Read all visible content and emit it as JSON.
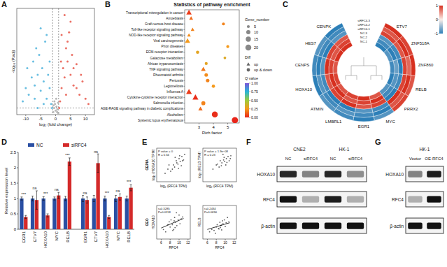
{
  "chart_data": [
    {
      "type": "scatter",
      "panel": "A",
      "x_label": "log₂ (fold change)",
      "y_label": "-log₁₀ (P.adj)",
      "series": [
        {
          "color": "#4db3dc",
          "x": [
            -11,
            -10,
            -9.5,
            -9,
            -8,
            -7.5,
            -7,
            -6.5,
            -6,
            -5.5,
            -5,
            -4.5,
            -4,
            -3.5,
            -3,
            -2.5,
            -2,
            -1.5,
            -1.2,
            -3,
            -5,
            -7,
            -2,
            -4,
            -6
          ],
          "values": [
            10,
            20,
            35,
            15,
            28,
            40,
            22,
            50,
            30,
            45,
            18,
            35,
            25,
            55,
            12,
            30,
            20,
            8,
            5,
            60,
            65,
            12,
            40,
            8,
            5
          ]
        },
        {
          "color": "#e8574a",
          "x": [
            1.2,
            1.5,
            2,
            2.5,
            3,
            3.5,
            4,
            4.5,
            5,
            5.5,
            6,
            7,
            8,
            9,
            10,
            11,
            2,
            3,
            4,
            5,
            6,
            7,
            3.5,
            1.8,
            8.5
          ],
          "values": [
            5,
            10,
            20,
            35,
            28,
            50,
            40,
            62,
            30,
            45,
            22,
            38,
            15,
            25,
            12,
            8,
            60,
            75,
            55,
            70,
            35,
            20,
            15,
            40,
            30
          ]
        },
        {
          "color": "#aaaaaa",
          "x": [
            -0.8,
            -0.5,
            -0.2,
            0,
            0.3,
            0.6,
            0.9,
            -0.4,
            0.2,
            0.5,
            -0.7,
            0.8
          ],
          "values": [
            2,
            5,
            8,
            3,
            6,
            4,
            1,
            10,
            12,
            2,
            7,
            9
          ]
        }
      ],
      "xlim": [
        -13,
        13
      ],
      "ylim": [
        0,
        80
      ],
      "xticks": [
        -10,
        -5,
        0,
        5,
        10
      ],
      "tick_labels": "x",
      "vlines": [
        -1,
        1
      ],
      "hline": 5
    },
    {
      "type": "bubble",
      "panel": "B",
      "title": "Statistics of pathway enrichment",
      "x_label": "Rich factor",
      "categories": [
        "Transcriptional misregulation in cancer",
        "Amoebiasis",
        "Graft-versus-host disease",
        "Toll-like receptor signaling pathway",
        "NOD-like receptor signaling pathway",
        "Viral carcinogenesis",
        "Prion diseases",
        "ECM-receptor interaction",
        "Galactose metabolism",
        "African trypanosomiasis",
        "TNF signaling pathway",
        "Rheumatoid arthritis",
        "Pertussis",
        "Legionellosis",
        "Influenza A",
        "Cytokine-cytokine receptor interaction",
        "Salmonella infection",
        "AGE-RAGE signaling pathway in diabetic complications",
        "Alcoholism",
        "Systemic lupus erythematosus"
      ],
      "values": [
        2.3,
        2.45,
        4.7,
        2.55,
        2.3,
        2.2,
        5.0,
        2.9,
        4.8,
        3.5,
        3.3,
        3.5,
        3.6,
        4.0,
        2.3,
        2.75,
        3.3,
        3.1,
        4.1,
        5.5
      ],
      "gene_number": [
        15,
        8,
        5,
        7,
        7,
        14,
        5,
        6,
        4,
        5,
        11,
        7,
        7,
        6,
        17,
        18,
        9,
        10,
        20,
        22
      ],
      "q_value": [
        0.05,
        0.15,
        0.2,
        0.2,
        0.22,
        0.25,
        0.25,
        0.3,
        0.32,
        0.3,
        0.18,
        0.22,
        0.2,
        0.25,
        0.05,
        0.02,
        0.2,
        0.15,
        0.02,
        0
      ],
      "diff": [
        "up",
        "up",
        "up & down",
        "up",
        "up",
        "up",
        "up & down",
        "up & down",
        "up & down",
        "up & down",
        "up",
        "up & down",
        "up & down",
        "up & down",
        "up",
        "up",
        "up & down",
        "up",
        "up & down",
        "up & down"
      ],
      "xlim": [
        2,
        5.8
      ],
      "xticks": [
        3,
        4,
        5
      ],
      "size_legend": {
        "title": "Gene_number",
        "values": [
          5,
          10,
          15,
          20
        ]
      },
      "diff_legend": {
        "title": "Diff",
        "items": [
          "up",
          "up & down"
        ]
      },
      "color_bar": {
        "title": "Q value",
        "range": [
          0,
          1
        ],
        "ticks": [
          {
            "value": 0,
            "label": "0.00"
          },
          {
            "value": 0.25,
            "label": "0.25"
          },
          {
            "value": 0.5,
            "label": "0.50"
          },
          {
            "value": 0.75,
            "label": "0.75"
          },
          {
            "value": 1,
            "label": "1.00"
          }
        ]
      }
    },
    {
      "type": "circular_heatmap",
      "panel": "C",
      "columns": [
        "ETV7",
        "ZNF518A",
        "ZNF860",
        "RELB",
        "PRRX2",
        "MYC",
        "EGR1",
        "LMBRL1",
        "ATMIN",
        "HOXA10",
        "CENPS",
        "HES7",
        "CENPK"
      ],
      "rows": [
        "siRFC4-3",
        "siRFC4-2",
        "siRFC4-1",
        "NC-3",
        "NC-2",
        "NC-1"
      ],
      "cells": [
        [
          1,
          0.9,
          1,
          0.8,
          0.9,
          -0.8,
          -1,
          -0.9,
          -0.8,
          -1,
          -0.9,
          -0.8,
          -1
        ],
        [
          0.8,
          1,
          0.7,
          1,
          0.8,
          -1,
          -0.9,
          -0.8,
          -0.9,
          -0.8,
          -1,
          -0.9,
          -0.9
        ],
        [
          0.9,
          0.8,
          0.9,
          0.9,
          1,
          -0.9,
          -0.8,
          -1,
          -1,
          -0.9,
          -0.8,
          -1,
          -0.8
        ],
        [
          -0.8,
          -0.9,
          -1,
          -0.9,
          -1,
          0.9,
          0.8,
          1,
          0.9,
          0.8,
          1,
          0.9,
          0.8
        ],
        [
          -0.9,
          -1,
          -0.7,
          -0.8,
          -0.9,
          1,
          0.9,
          0.8,
          1,
          1,
          0.9,
          0.8,
          0.9
        ],
        [
          -1,
          -0.8,
          -0.9,
          -1,
          -0.8,
          0.8,
          1,
          0.9,
          0.8,
          0.9,
          0.8,
          1,
          1
        ]
      ],
      "color_bar": {
        "range": [
          -1,
          1
        ],
        "ticks": [
          1,
          0,
          -1
        ]
      }
    },
    {
      "type": "bar",
      "panel": "D",
      "y_label": "Relative expression level",
      "categories": [
        "EGR1",
        "ETV7",
        "HOXA10",
        "MYC",
        "RELB",
        "EGR1",
        "ETV7",
        "HOXA10",
        "MYC",
        "RELB"
      ],
      "series": [
        {
          "name": "NC",
          "color": "#2a4fa3",
          "values": [
            1,
            1,
            1,
            1,
            1,
            1,
            1,
            1,
            1,
            1
          ],
          "errors": [
            0.05,
            0.08,
            0.06,
            0.05,
            0.07,
            0.1,
            0.1,
            0.08,
            0.1,
            0.08
          ]
        },
        {
          "name": "siRFC4",
          "color": "#d42a2a",
          "values": [
            0.4,
            0.95,
            0.45,
            1.1,
            2.2,
            0.95,
            2.15,
            0.4,
            1.05,
            1.35
          ],
          "errors": [
            0.05,
            0.3,
            0.05,
            0.1,
            0.12,
            0.1,
            0.3,
            0.05,
            0.1,
            0.1
          ]
        }
      ],
      "annotations": [
        "***",
        "ns",
        "***",
        "ns",
        "***",
        "ns",
        "ns",
        "***",
        "ns",
        "***"
      ],
      "ylim": [
        0,
        2.5
      ],
      "yticks": [
        0,
        0.5,
        1,
        1.5,
        2,
        2.5
      ],
      "legend": "top"
    },
    {
      "type": "scatter",
      "panel": "E",
      "side_label": "GEPIA",
      "x_label": "log₂ (RFC4 TPM)",
      "y_label": "log₂ (HOXA10 TPM)",
      "annotations": [
        "P value = 0",
        "R = 0.34"
      ],
      "color": "#444444",
      "x": [
        1.5,
        2,
        2.5,
        3,
        3.2,
        3.5,
        3.8,
        4,
        4.2,
        4.5,
        4.8,
        5,
        2.8,
        3.6,
        4.1,
        4.4,
        3.3,
        2.2,
        3.9,
        4.6
      ],
      "values": [
        2,
        3,
        2.5,
        4,
        3.5,
        5,
        4.2,
        5.5,
        4.8,
        6,
        5.2,
        6.5,
        3,
        4.5,
        6.2,
        3.8,
        5.8,
        4,
        3.2,
        5
      ],
      "xlim": [
        0,
        6
      ],
      "ylim": [
        0,
        8
      ],
      "tick_labels": false
    },
    {
      "type": "scatter",
      "x_label": "log₂ (RFC4 TPM)",
      "y_label": "log₂ (RELB TPM)",
      "annotations": [
        "P value = 1.9e−08",
        "R = 0.23"
      ],
      "color": "#444444",
      "x": [
        1.8,
        2.4,
        2.9,
        3.1,
        3.4,
        3.7,
        3.9,
        4.2,
        4.5,
        4.7,
        5,
        2.6,
        3.3,
        3.8,
        4.3,
        4.9,
        3.6,
        4.1
      ],
      "values": [
        3,
        4,
        3.5,
        5,
        4.5,
        5.2,
        4.8,
        5.5,
        6,
        5,
        6.2,
        4.2,
        3.8,
        5.8,
        4.6,
        5.5,
        6.5,
        4
      ],
      "xlim": [
        0,
        6
      ],
      "ylim": [
        0,
        8
      ],
      "tick_labels": false
    },
    {
      "type": "scatter",
      "side_label": "GEO",
      "x_label": "RFC4",
      "y_label": "HOXA10",
      "annotations": [
        "r=0.3285",
        "P=0.0118"
      ],
      "color": "#444444",
      "x": [
        6.5,
        7,
        7.5,
        8,
        8.2,
        8.5,
        8.8,
        9,
        9.2,
        9.5,
        9.8,
        10,
        10.2,
        10.5,
        8.6,
        9.4,
        7.8,
        9.1,
        10.8,
        8.9
      ],
      "values": [
        7,
        6.5,
        8,
        7.5,
        9,
        8,
        7,
        9.5,
        8.5,
        7.8,
        9,
        10,
        8.2,
        9.2,
        6.8,
        10.5,
        8.6,
        7.4,
        9.6,
        8.8
      ],
      "fit_line": {
        "x": [
          6,
          11
        ],
        "y": [
          7.3,
          9.3
        ]
      },
      "xlim": [
        5,
        12.5
      ],
      "ylim": [
        5,
        12
      ],
      "xticks": [
        6,
        8,
        10,
        12
      ],
      "tick_labels": "x"
    },
    {
      "type": "scatter",
      "x_label": "RFC4",
      "y_label": "RELB",
      "annotations": [
        "r=0.2434",
        "P=0.0656"
      ],
      "color": "#444444",
      "x": [
        6.5,
        7,
        7.5,
        8,
        8.2,
        8.5,
        8.8,
        9,
        9.2,
        9.5,
        9.8,
        10,
        10.2,
        10.5,
        8.6,
        9.4,
        7.8,
        9.1,
        10.8,
        8.9
      ],
      "values": [
        6.5,
        7,
        6.8,
        7.5,
        8,
        7.2,
        8.5,
        7.8,
        6.9,
        8.2,
        9,
        7.6,
        8.4,
        9.5,
        7.1,
        8.8,
        6.2,
        7.9,
        8.6,
        7.4
      ],
      "fit_line": {
        "x": [
          6,
          11
        ],
        "y": [
          7,
          8.4
        ]
      },
      "xlim": [
        5,
        12.5
      ],
      "ylim": [
        5,
        12
      ],
      "xticks": [
        6,
        8,
        10,
        12
      ],
      "tick_labels": "x"
    },
    {
      "type": "blot",
      "panel": "F",
      "groups": [
        {
          "label": "CNE2",
          "lanes": [
            "NC",
            "siRFC4"
          ]
        },
        {
          "label": "HK-1",
          "lanes": [
            "NC",
            "siRFC4"
          ]
        }
      ],
      "rows": [
        {
          "label": "HOXA10",
          "intensity": [
            0.9,
            0.5,
            0.9,
            0.45
          ]
        },
        {
          "label": "RFC4",
          "intensity": [
            1,
            0.3,
            0.95,
            0.3
          ]
        },
        {
          "label": "β-actin",
          "intensity": [
            1,
            1,
            1,
            1
          ]
        }
      ]
    },
    {
      "type": "blot",
      "panel": "G",
      "groups": [
        {
          "label": "HK-1",
          "lanes": [
            "Vector",
            "OE-RFC4"
          ]
        }
      ],
      "rows": [
        {
          "label": "HOXA10",
          "intensity": [
            0.5,
            0.95
          ]
        },
        {
          "label": "RFC4",
          "intensity": [
            0.3,
            1
          ]
        },
        {
          "label": "β-actin",
          "intensity": [
            1,
            1
          ]
        }
      ]
    }
  ]
}
